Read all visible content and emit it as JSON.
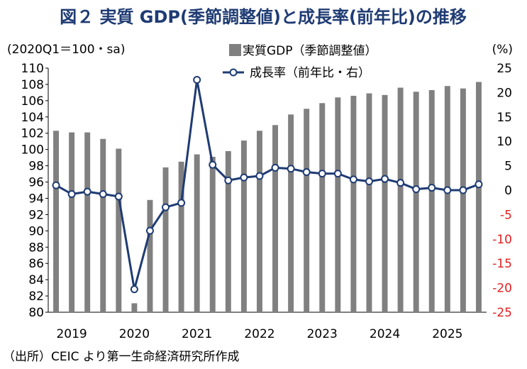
{
  "chart_data": {
    "type": "bar+line",
    "title": "図２ 実質 GDP(季節調整値)と成長率(前年比)の推移",
    "left_axis_label": "(2020Q1＝100・sa)",
    "right_axis_label": "(%)",
    "legend": {
      "bar": "実質GDP（季節調整値）",
      "line": "成長率（前年比・右）"
    },
    "source": "（出所）CEIC より第一生命経済研究所作成",
    "left_ylim": [
      80,
      110
    ],
    "left_ticks": [
      "80",
      "82",
      "84",
      "86",
      "88",
      "90",
      "92",
      "94",
      "96",
      "98",
      "100",
      "102",
      "104",
      "106",
      "108",
      "110"
    ],
    "right_ylim": [
      -25,
      25
    ],
    "right_ticks": [
      "25",
      "20",
      "15",
      "10",
      "5",
      "0",
      "-5",
      "-10",
      "-15",
      "-20",
      "-25"
    ],
    "year_labels": [
      "2019",
      "2020",
      "2021",
      "2022",
      "2023",
      "2024",
      "2025"
    ],
    "quarters": [
      "2019Q1",
      "2019Q2",
      "2019Q3",
      "2019Q4",
      "2020Q1",
      "2020Q2",
      "2020Q3",
      "2020Q4",
      "2021Q1",
      "2021Q2",
      "2021Q3",
      "2021Q4",
      "2022Q1",
      "2022Q2",
      "2022Q3",
      "2022Q4",
      "2023Q1",
      "2023Q2",
      "2023Q3",
      "2023Q4",
      "2024Q1",
      "2024Q2",
      "2024Q3",
      "2024Q4",
      "2025Q1",
      "2025Q2",
      "2025Q3",
      "2025Q4"
    ],
    "series": [
      {
        "name": "実質GDP（季節調整値）",
        "kind": "bar",
        "axis": "left",
        "color": "#808080",
        "values": [
          102.3,
          102.1,
          102.1,
          101.3,
          100.1,
          81.1,
          93.8,
          97.8,
          98.5,
          99.4,
          99.1,
          99.8,
          101.1,
          102.3,
          103.0,
          104.3,
          105.0,
          105.7,
          106.4,
          106.6,
          106.9,
          106.7,
          107.6,
          107.1,
          107.3,
          107.8,
          107.5,
          108.3
        ]
      },
      {
        "name": "成長率（前年比・右）",
        "kind": "line",
        "axis": "right",
        "color": "#1f3b73",
        "values": [
          1.0,
          -0.8,
          -0.3,
          -0.8,
          -1.3,
          -20.3,
          -8.3,
          -3.5,
          -2.6,
          22.6,
          5.2,
          2.0,
          2.6,
          2.9,
          4.6,
          4.4,
          3.7,
          3.4,
          3.4,
          2.2,
          1.8,
          2.3,
          1.5,
          0.2,
          0.5,
          0.0,
          0.0,
          1.2
        ]
      }
    ]
  }
}
